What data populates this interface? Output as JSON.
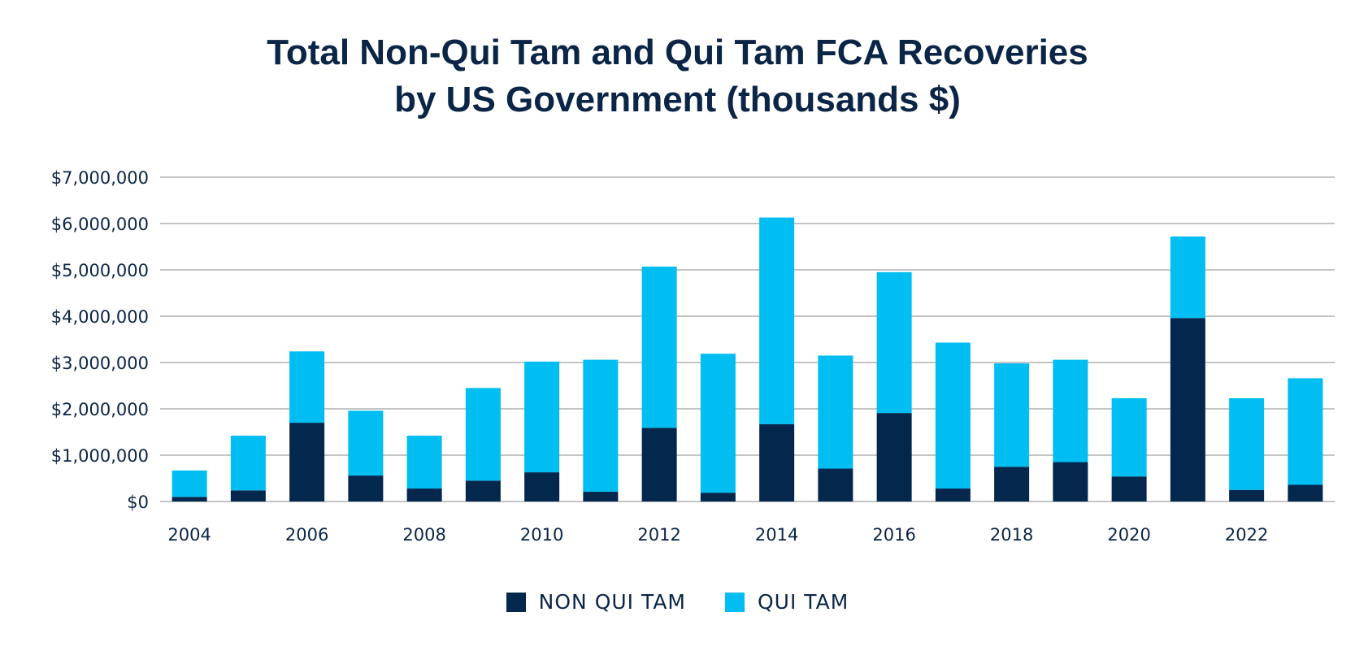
{
  "chart_data": {
    "type": "bar",
    "stacked": true,
    "title_lines": [
      "Total Non-Qui Tam and Qui Tam FCA Recoveries",
      "by US Government (thousands $)"
    ],
    "xlabel": "",
    "ylabel": "",
    "ylim": [
      0,
      7000000
    ],
    "y_ticks": [
      "$0",
      "$1,000,000",
      "$2,000,000",
      "$3,000,000",
      "$4,000,000",
      "$5,000,000",
      "$6,000,000",
      "$7,000,000"
    ],
    "x_tick_labels": [
      "2004",
      "2006",
      "2008",
      "2010",
      "2012",
      "2014",
      "2016",
      "2018",
      "2020",
      "2022"
    ],
    "grid": true,
    "legend_position": "bottom",
    "categories": [
      "2004",
      "2005",
      "2006",
      "2007",
      "2008",
      "2009",
      "2010",
      "2011",
      "2012",
      "2013",
      "2014",
      "2015",
      "2016",
      "2017",
      "2018",
      "2019",
      "2020",
      "2021",
      "2022",
      "2023"
    ],
    "series": [
      {
        "name": "NON QUI TAM",
        "color": "#03274d",
        "values": [
          100000,
          240000,
          1700000,
          560000,
          280000,
          450000,
          630000,
          210000,
          1590000,
          190000,
          1670000,
          710000,
          1910000,
          280000,
          750000,
          850000,
          540000,
          3960000,
          250000,
          360000
        ]
      },
      {
        "name": "QUI TAM",
        "color": "#00bdf2",
        "values": [
          570000,
          1180000,
          1540000,
          1400000,
          1140000,
          2000000,
          2390000,
          2850000,
          3480000,
          3000000,
          4460000,
          2440000,
          3040000,
          3150000,
          2230000,
          2210000,
          1690000,
          1760000,
          1980000,
          2300000
        ]
      }
    ]
  }
}
